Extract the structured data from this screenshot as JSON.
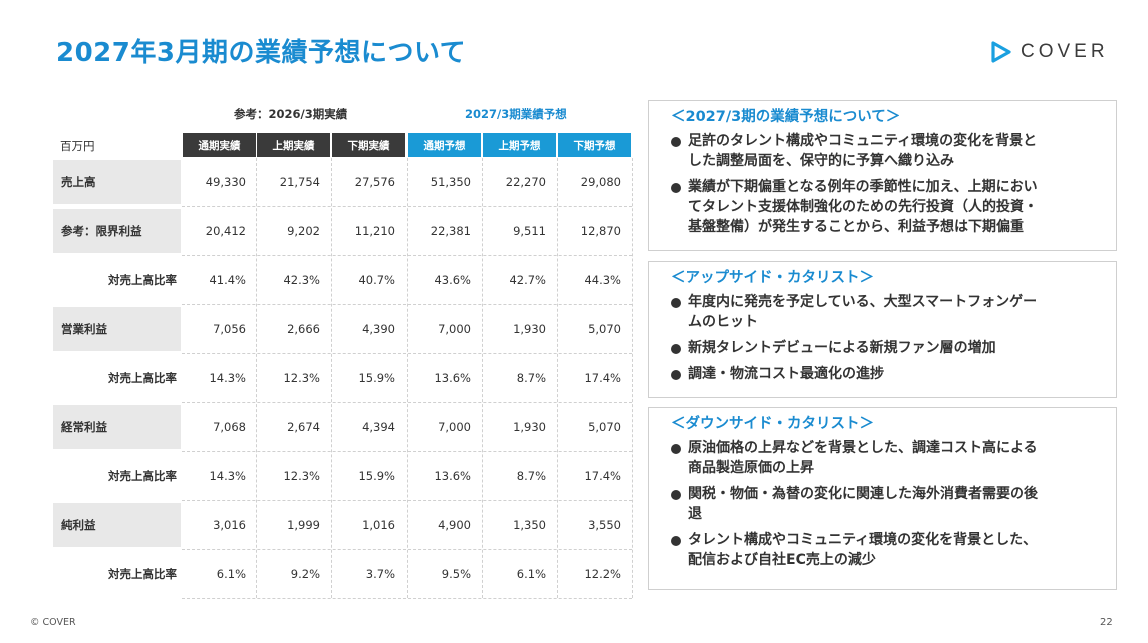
{
  "title": "2027年3月期の業績予想について",
  "logo": {
    "text": "COVER",
    "color": "#1aa0e0"
  },
  "table": {
    "header_reference": "参考：2026/3期実績",
    "header_forecast": "2027/3期業績予想",
    "unit": "百万円",
    "columns": [
      "通期実績",
      "上期実績",
      "下期実績",
      "通期予想",
      "上期予想",
      "下期予想"
    ],
    "rows": [
      {
        "label": "売上高",
        "values": [
          "49,330",
          "21,754",
          "27,576",
          "51,350",
          "22,270",
          "29,080"
        ]
      },
      {
        "label": "参考：限界利益",
        "values": [
          "20,412",
          "9,202",
          "11,210",
          "22,381",
          "9,511",
          "12,870"
        ]
      },
      {
        "label": "対売上高比率",
        "values": [
          "41.4%",
          "42.3%",
          "40.7%",
          "43.6%",
          "42.7%",
          "44.3%"
        ]
      },
      {
        "label": "営業利益",
        "values": [
          "7,056",
          "2,666",
          "4,390",
          "7,000",
          "1,930",
          "5,070"
        ]
      },
      {
        "label": "対売上高比率",
        "values": [
          "14.3%",
          "12.3%",
          "15.9%",
          "13.6%",
          "8.7%",
          "17.4%"
        ]
      },
      {
        "label": "経常利益",
        "values": [
          "7,068",
          "2,674",
          "4,394",
          "7,000",
          "1,930",
          "5,070"
        ]
      },
      {
        "label": "対売上高比率",
        "values": [
          "14.3%",
          "12.3%",
          "15.9%",
          "13.6%",
          "8.7%",
          "17.4%"
        ]
      },
      {
        "label": "純利益",
        "values": [
          "3,016",
          "1,999",
          "1,016",
          "4,900",
          "1,350",
          "3,550"
        ]
      },
      {
        "label": "対売上高比率",
        "values": [
          "6.1%",
          "9.2%",
          "3.7%",
          "9.5%",
          "6.1%",
          "12.2%"
        ]
      }
    ]
  },
  "boxes": [
    {
      "title": "＜2027/3期の業績予想について＞",
      "bullets": [
        {
          "lines": [
            "足許のタレント構成やコミュニティ環境の変化を背景と",
            "した調整局面を、保守的に予算へ織り込み"
          ]
        },
        {
          "lines": [
            "業績が下期偏重となる例年の季節性に加え、上期におい",
            "てタレント支援体制強化のための先行投資（人的投資・",
            "基盤整備）が発生することから、利益予想は下期偏重"
          ]
        }
      ]
    },
    {
      "title": "＜アップサイド・カタリスト＞",
      "bullets": [
        {
          "lines": [
            "年度内に発売を予定している、大型スマートフォンゲー",
            "ムのヒット"
          ]
        },
        {
          "lines": [
            "新規タレントデビューによる新規ファン層の増加"
          ]
        },
        {
          "lines": [
            "調達・物流コスト最適化の進捗"
          ]
        }
      ]
    },
    {
      "title": "＜ダウンサイド・カタリスト＞",
      "bullets": [
        {
          "lines": [
            "原油価格の上昇などを背景とした、調達コスト高による",
            "商品製造原価の上昇"
          ]
        },
        {
          "lines": [
            "関税・物価・為替の変化に関連した海外消費者需要の後",
            "退"
          ]
        },
        {
          "lines": [
            "タレント構成やコミュニティ環境の変化を背景とした、",
            "配信および自社EC売上の減少"
          ]
        }
      ]
    }
  ],
  "footer": {
    "copyright": "© COVER",
    "page_number": "22"
  }
}
